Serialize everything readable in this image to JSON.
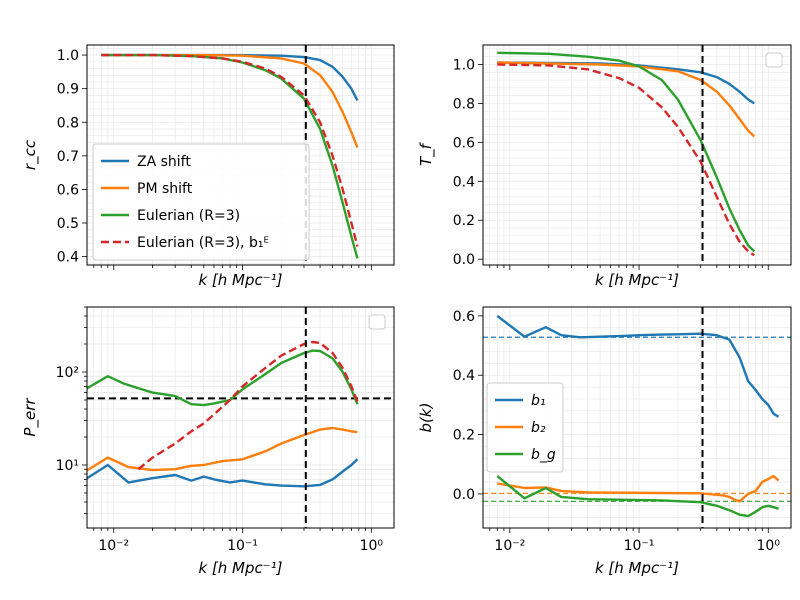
{
  "colors": {
    "za": "#1f77b4",
    "pm": "#ff7f0e",
    "eul": "#2ca02c",
    "eul_b1": "#d62728",
    "vline": "#000000"
  },
  "chart_data": [
    {
      "id": "rcc",
      "type": "line",
      "xscale": "log",
      "xlim": [
        0.0062,
        1.5
      ],
      "ylim": [
        0.375,
        1.03
      ],
      "xlabel": "k   [h Mpc⁻¹]",
      "ylabel": "r_cc",
      "xticks": [],
      "yticks": [
        1.0,
        0.9,
        0.8,
        0.7,
        0.6,
        0.5,
        0.4
      ],
      "yticklabels": [
        "1.0",
        "0.9",
        "0.8",
        "0.7",
        "0.6",
        "0.5",
        "0.4"
      ],
      "vline": 0.31,
      "legend": {
        "location": "lower-left",
        "entries": [
          "ZA shift",
          "PM shift",
          "Eulerian (R=3)",
          "Eulerian (R=3), b₁ᴱ"
        ]
      },
      "series": [
        {
          "name": "ZA shift",
          "color": "za",
          "dash": false,
          "points": [
            [
              0.008,
              1.0
            ],
            [
              0.05,
              1.0
            ],
            [
              0.1,
              1.0
            ],
            [
              0.2,
              0.998
            ],
            [
              0.3,
              0.994
            ],
            [
              0.4,
              0.985
            ],
            [
              0.5,
              0.965
            ],
            [
              0.6,
              0.935
            ],
            [
              0.7,
              0.9
            ],
            [
              0.78,
              0.865
            ]
          ]
        },
        {
          "name": "PM shift",
          "color": "pm",
          "dash": false,
          "points": [
            [
              0.008,
              1.0
            ],
            [
              0.05,
              1.0
            ],
            [
              0.1,
              0.998
            ],
            [
              0.2,
              0.99
            ],
            [
              0.3,
              0.975
            ],
            [
              0.4,
              0.94
            ],
            [
              0.5,
              0.89
            ],
            [
              0.6,
              0.83
            ],
            [
              0.7,
              0.77
            ],
            [
              0.78,
              0.725
            ]
          ]
        },
        {
          "name": "Eulerian (R=3)",
          "color": "eul",
          "dash": false,
          "points": [
            [
              0.008,
              1.0
            ],
            [
              0.02,
              1.0
            ],
            [
              0.04,
              0.997
            ],
            [
              0.07,
              0.99
            ],
            [
              0.1,
              0.978
            ],
            [
              0.15,
              0.955
            ],
            [
              0.2,
              0.93
            ],
            [
              0.3,
              0.87
            ],
            [
              0.4,
              0.78
            ],
            [
              0.5,
              0.67
            ],
            [
              0.6,
              0.56
            ],
            [
              0.7,
              0.46
            ],
            [
              0.78,
              0.395
            ]
          ]
        },
        {
          "name": "Eulerian (R=3), b₁ᴱ",
          "color": "eul_b1",
          "dash": true,
          "points": [
            [
              0.008,
              1.0
            ],
            [
              0.02,
              1.0
            ],
            [
              0.04,
              0.997
            ],
            [
              0.07,
              0.99
            ],
            [
              0.1,
              0.98
            ],
            [
              0.15,
              0.96
            ],
            [
              0.2,
              0.935
            ],
            [
              0.3,
              0.88
            ],
            [
              0.4,
              0.8
            ],
            [
              0.5,
              0.7
            ],
            [
              0.6,
              0.6
            ],
            [
              0.7,
              0.5
            ],
            [
              0.78,
              0.43
            ]
          ]
        }
      ]
    },
    {
      "id": "tf",
      "type": "line",
      "xscale": "log",
      "xlim": [
        0.0062,
        1.5
      ],
      "ylim": [
        -0.03,
        1.1
      ],
      "xlabel": "k   [h Mpc⁻¹]",
      "ylabel": "T_f",
      "xticks": [],
      "yticks": [
        1.0,
        0.8,
        0.6,
        0.4,
        0.2,
        0.0
      ],
      "yticklabels": [
        "1.0",
        "0.8",
        "0.6",
        "0.4",
        "0.2",
        "0.0"
      ],
      "vline": 0.31,
      "legend": {
        "location": "top-right",
        "entries": []
      },
      "series": [
        {
          "name": "ZA shift",
          "color": "za",
          "dash": false,
          "points": [
            [
              0.008,
              1.01
            ],
            [
              0.05,
              1.005
            ],
            [
              0.1,
              0.995
            ],
            [
              0.2,
              0.975
            ],
            [
              0.3,
              0.96
            ],
            [
              0.4,
              0.935
            ],
            [
              0.5,
              0.9
            ],
            [
              0.6,
              0.86
            ],
            [
              0.7,
              0.82
            ],
            [
              0.78,
              0.8
            ]
          ]
        },
        {
          "name": "PM shift",
          "color": "pm",
          "dash": false,
          "points": [
            [
              0.008,
              1.01
            ],
            [
              0.05,
              1.0
            ],
            [
              0.1,
              0.99
            ],
            [
              0.2,
              0.965
            ],
            [
              0.3,
              0.92
            ],
            [
              0.4,
              0.86
            ],
            [
              0.5,
              0.79
            ],
            [
              0.6,
              0.72
            ],
            [
              0.7,
              0.66
            ],
            [
              0.78,
              0.63
            ]
          ]
        },
        {
          "name": "Eulerian (R=3)",
          "color": "eul",
          "dash": false,
          "points": [
            [
              0.008,
              1.06
            ],
            [
              0.02,
              1.055
            ],
            [
              0.04,
              1.04
            ],
            [
              0.07,
              1.02
            ],
            [
              0.1,
              0.99
            ],
            [
              0.15,
              0.92
            ],
            [
              0.2,
              0.82
            ],
            [
              0.3,
              0.61
            ],
            [
              0.4,
              0.42
            ],
            [
              0.5,
              0.26
            ],
            [
              0.6,
              0.15
            ],
            [
              0.7,
              0.07
            ],
            [
              0.78,
              0.04
            ]
          ]
        },
        {
          "name": "Eulerian (R=3), b₁ᴱ",
          "color": "eul_b1",
          "dash": true,
          "points": [
            [
              0.008,
              1.0
            ],
            [
              0.02,
              0.995
            ],
            [
              0.04,
              0.975
            ],
            [
              0.07,
              0.93
            ],
            [
              0.1,
              0.88
            ],
            [
              0.15,
              0.78
            ],
            [
              0.2,
              0.68
            ],
            [
              0.3,
              0.5
            ],
            [
              0.4,
              0.32
            ],
            [
              0.5,
              0.18
            ],
            [
              0.6,
              0.09
            ],
            [
              0.7,
              0.04
            ],
            [
              0.78,
              0.02
            ]
          ]
        }
      ]
    },
    {
      "id": "perr",
      "type": "line",
      "xscale": "log",
      "yscale": "log",
      "xlim": [
        0.0062,
        1.5
      ],
      "ylim": [
        2.1,
        500
      ],
      "xlabel": "k   [h Mpc⁻¹]",
      "ylabel": "P_err",
      "xticks": [
        0.01,
        0.1,
        1.0
      ],
      "xticklabels": [
        "10⁻²",
        "10⁻¹",
        "10⁰"
      ],
      "yticks": [
        10,
        100
      ],
      "yticklabels": [
        "10¹",
        "10²"
      ],
      "vline": 0.31,
      "hline": 52,
      "legend": {
        "location": "top-right",
        "entries": []
      },
      "series": [
        {
          "name": "ZA shift",
          "color": "za",
          "dash": false,
          "points": [
            [
              0.006,
              7
            ],
            [
              0.009,
              10
            ],
            [
              0.013,
              6.5
            ],
            [
              0.02,
              7.2
            ],
            [
              0.03,
              7.8
            ],
            [
              0.04,
              6.8
            ],
            [
              0.05,
              7.5
            ],
            [
              0.06,
              7
            ],
            [
              0.08,
              6.5
            ],
            [
              0.1,
              6.8
            ],
            [
              0.15,
              6.2
            ],
            [
              0.2,
              6.0
            ],
            [
              0.3,
              5.9
            ],
            [
              0.4,
              6.1
            ],
            [
              0.5,
              7
            ],
            [
              0.6,
              8.5
            ],
            [
              0.7,
              10
            ],
            [
              0.78,
              11.5
            ]
          ]
        },
        {
          "name": "PM shift",
          "color": "pm",
          "dash": false,
          "points": [
            [
              0.006,
              8.5
            ],
            [
              0.009,
              12
            ],
            [
              0.013,
              9.5
            ],
            [
              0.02,
              8.8
            ],
            [
              0.03,
              9
            ],
            [
              0.04,
              9.8
            ],
            [
              0.05,
              10
            ],
            [
              0.07,
              11
            ],
            [
              0.1,
              11.5
            ],
            [
              0.15,
              14
            ],
            [
              0.2,
              17
            ],
            [
              0.3,
              21
            ],
            [
              0.4,
              24
            ],
            [
              0.5,
              25
            ],
            [
              0.6,
              24
            ],
            [
              0.7,
              23
            ],
            [
              0.78,
              22.5
            ]
          ]
        },
        {
          "name": "Eulerian (R=3)",
          "color": "eul",
          "dash": false,
          "points": [
            [
              0.006,
              65
            ],
            [
              0.009,
              90
            ],
            [
              0.012,
              75
            ],
            [
              0.02,
              60
            ],
            [
              0.03,
              55
            ],
            [
              0.04,
              45
            ],
            [
              0.05,
              44
            ],
            [
              0.06,
              46
            ],
            [
              0.08,
              50
            ],
            [
              0.1,
              65
            ],
            [
              0.15,
              95
            ],
            [
              0.2,
              125
            ],
            [
              0.3,
              160
            ],
            [
              0.35,
              170
            ],
            [
              0.4,
              168
            ],
            [
              0.5,
              140
            ],
            [
              0.6,
              100
            ],
            [
              0.7,
              65
            ],
            [
              0.78,
              45
            ]
          ]
        },
        {
          "name": "Eulerian (R=3), b₁ᴱ",
          "color": "eul_b1",
          "dash": true,
          "points": [
            [
              0.0155,
              9
            ],
            [
              0.02,
              12
            ],
            [
              0.03,
              17
            ],
            [
              0.04,
              23
            ],
            [
              0.05,
              28
            ],
            [
              0.06,
              35
            ],
            [
              0.08,
              50
            ],
            [
              0.1,
              70
            ],
            [
              0.15,
              110
            ],
            [
              0.2,
              150
            ],
            [
              0.3,
              200
            ],
            [
              0.35,
              210
            ],
            [
              0.4,
              205
            ],
            [
              0.5,
              160
            ],
            [
              0.6,
              110
            ],
            [
              0.7,
              70
            ],
            [
              0.78,
              48
            ]
          ]
        }
      ]
    },
    {
      "id": "bk",
      "type": "line",
      "xscale": "log",
      "xlim": [
        0.0062,
        1.5
      ],
      "ylim": [
        -0.115,
        0.63
      ],
      "xlabel": "k   [h Mpc⁻¹]",
      "ylabel": "b(k)",
      "xticks": [
        0.01,
        0.1,
        1.0
      ],
      "xticklabels": [
        "10⁻²",
        "10⁻¹",
        "10⁰"
      ],
      "yticks": [
        0.6,
        0.4,
        0.2,
        0.0
      ],
      "yticklabels": [
        "0.6",
        "0.4",
        "0.2",
        "0.0"
      ],
      "vline": 0.31,
      "hlines": [
        {
          "y": 0.528,
          "color": "za"
        },
        {
          "y": 0.002,
          "color": "pm"
        },
        {
          "y": -0.025,
          "color": "eul"
        }
      ],
      "legend": {
        "location": "center-left",
        "entries": [
          "b₁",
          "b₂",
          "b_g"
        ]
      },
      "series": [
        {
          "name": "b₁",
          "color": "za",
          "dash": false,
          "points": [
            [
              0.008,
              0.6
            ],
            [
              0.013,
              0.53
            ],
            [
              0.019,
              0.562
            ],
            [
              0.025,
              0.535
            ],
            [
              0.035,
              0.528
            ],
            [
              0.05,
              0.53
            ],
            [
              0.08,
              0.533
            ],
            [
              0.1,
              0.535
            ],
            [
              0.15,
              0.537
            ],
            [
              0.2,
              0.538
            ],
            [
              0.3,
              0.54
            ],
            [
              0.4,
              0.535
            ],
            [
              0.5,
              0.52
            ],
            [
              0.6,
              0.46
            ],
            [
              0.7,
              0.38
            ],
            [
              0.8,
              0.35
            ],
            [
              0.9,
              0.32
            ],
            [
              1.0,
              0.3
            ],
            [
              1.1,
              0.27
            ],
            [
              1.2,
              0.26
            ]
          ]
        },
        {
          "name": "b₂",
          "color": "pm",
          "dash": false,
          "points": [
            [
              0.008,
              0.035
            ],
            [
              0.013,
              0.02
            ],
            [
              0.019,
              0.022
            ],
            [
              0.025,
              0.01
            ],
            [
              0.04,
              0.005
            ],
            [
              0.08,
              0.004
            ],
            [
              0.15,
              0.003
            ],
            [
              0.3,
              0.002
            ],
            [
              0.45,
              -0.005
            ],
            [
              0.5,
              -0.01
            ],
            [
              0.55,
              -0.02
            ],
            [
              0.6,
              -0.025
            ],
            [
              0.7,
              0.0
            ],
            [
              0.8,
              0.01
            ],
            [
              0.9,
              0.04
            ],
            [
              1.0,
              0.05
            ],
            [
              1.1,
              0.06
            ],
            [
              1.2,
              0.045
            ]
          ]
        },
        {
          "name": "b_g",
          "color": "eul",
          "dash": false,
          "points": [
            [
              0.008,
              0.06
            ],
            [
              0.013,
              -0.015
            ],
            [
              0.019,
              0.02
            ],
            [
              0.025,
              -0.01
            ],
            [
              0.04,
              -0.018
            ],
            [
              0.08,
              -0.02
            ],
            [
              0.15,
              -0.022
            ],
            [
              0.3,
              -0.028
            ],
            [
              0.4,
              -0.04
            ],
            [
              0.5,
              -0.055
            ],
            [
              0.6,
              -0.07
            ],
            [
              0.7,
              -0.075
            ],
            [
              0.8,
              -0.06
            ],
            [
              0.9,
              -0.045
            ],
            [
              1.0,
              -0.04
            ],
            [
              1.1,
              -0.045
            ],
            [
              1.2,
              -0.05
            ]
          ]
        }
      ]
    }
  ]
}
